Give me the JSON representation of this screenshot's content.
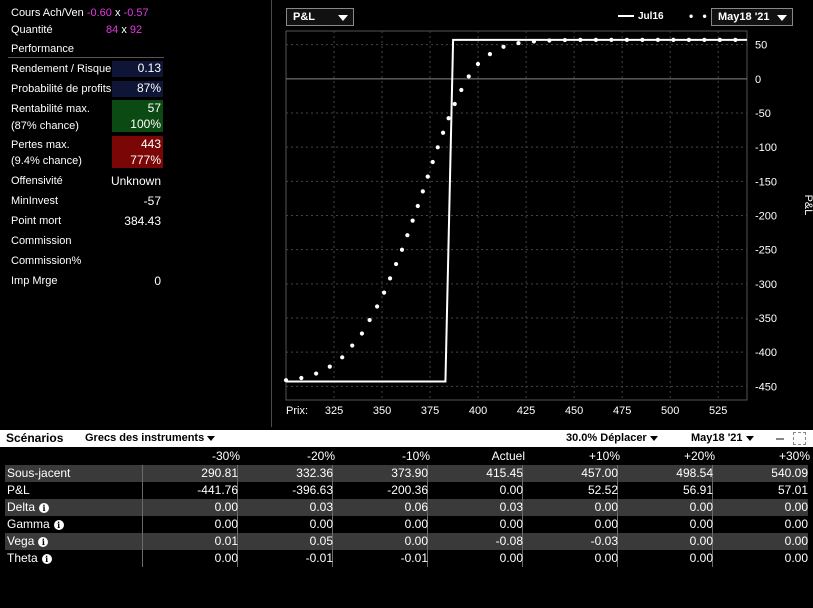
{
  "left": {
    "bidask_label": "Cours Ach/Ven",
    "bid": "-0.60",
    "x1": "x",
    "ask": "-0.57",
    "qty_label": "Quantité",
    "qty_bid": "84",
    "x2": "x",
    "qty_ask": "92",
    "performance": "Performance",
    "rows": {
      "rr_label": "Rendement / Risque",
      "rr_val": "0.13",
      "pp_label": "Probabilité de profits",
      "pp_val": "87%",
      "rm_label": "Rentabilité max.",
      "rm_val": "57",
      "rm_sub_label": "(87% chance)",
      "rm_sub_val": "100%",
      "pm_label": "Pertes max.",
      "pm_val": "443",
      "pm_sub_label": "(9.4% chance)",
      "pm_sub_val": "777%",
      "off_label": "Offensivité",
      "off_val": "Unknown",
      "mi_label": "MinInvest",
      "mi_val": "-57",
      "pt_label": "Point mort",
      "pt_val": "384.43",
      "com_label": "Commission",
      "comp_label": "Commission%",
      "imp_label": "Imp Mrge",
      "imp_val": "0"
    }
  },
  "chart": {
    "selector": "P&L",
    "legend1": "Jul16",
    "legend2_selector": "May18 '21",
    "x_axis_prefix": "Prix:",
    "y_axis_title": "P&L"
  },
  "chart_data": {
    "type": "line",
    "xlabel": "Prix:",
    "ylabel": "P&L",
    "xlim": [
      300,
      540
    ],
    "ylim": [
      -470,
      70
    ],
    "x_ticks": [
      325,
      350,
      375,
      400,
      425,
      450,
      475,
      500,
      525
    ],
    "y_ticks": [
      50,
      0,
      -50,
      -100,
      -150,
      -200,
      -250,
      -300,
      -350,
      -400,
      -450
    ],
    "series": [
      {
        "name": "Jul16",
        "style": "solid",
        "color": "#ffffff",
        "x": [
          300,
          383,
          383,
          387,
          540
        ],
        "y": [
          -443,
          -443,
          -443,
          57,
          57
        ]
      },
      {
        "name": "May18 '21",
        "style": "dotted",
        "color": "#ffffff",
        "x": [
          300,
          310,
          320,
          330,
          340,
          350,
          360,
          365,
          370,
          375,
          380,
          385,
          390,
          395,
          400,
          405,
          410,
          415,
          420,
          430,
          440,
          450,
          460,
          470,
          480,
          490,
          500,
          510,
          520,
          530,
          540
        ],
        "y": [
          -441,
          -437,
          -427,
          -406,
          -371,
          -320,
          -253,
          -215,
          -175,
          -133,
          -92,
          -55,
          -23,
          3,
          22,
          34,
          43,
          49,
          52,
          55,
          56.5,
          57,
          57,
          57,
          57,
          57,
          57,
          57,
          57,
          57,
          57
        ]
      }
    ]
  },
  "scenarios": {
    "title": "Scénarios",
    "greeks_dropdown": "Grecs des instruments",
    "shift_dropdown": "30.0% Déplacer",
    "date_dropdown": "May18 '21",
    "columns": [
      "-30%",
      "-20%",
      "-10%",
      "Actuel",
      "+10%",
      "+20%",
      "+30%"
    ],
    "rows": [
      {
        "label": "Sous-jacent",
        "info": "",
        "values": [
          "290.81",
          "332.36",
          "373.90",
          "415.45",
          "457.00",
          "498.54",
          "540.09"
        ]
      },
      {
        "label": "P&L",
        "info": "",
        "values": [
          "-441.76",
          "-396.63",
          "-200.36",
          "0.00",
          "52.52",
          "56.91",
          "57.01"
        ]
      },
      {
        "label": "Delta",
        "info": "i",
        "values": [
          "0.00",
          "0.03",
          "0.06",
          "0.03",
          "0.00",
          "0.00",
          "0.00"
        ]
      },
      {
        "label": "Gamma",
        "info": "i",
        "values": [
          "0.00",
          "0.00",
          "0.00",
          "0.00",
          "0.00",
          "0.00",
          "0.00"
        ]
      },
      {
        "label": "Vega",
        "info": "i",
        "values": [
          "0.01",
          "0.05",
          "0.00",
          "-0.08",
          "-0.03",
          "0.00",
          "0.00"
        ]
      },
      {
        "label": "Theta",
        "info": "i",
        "values": [
          "0.00",
          "-0.01",
          "-0.01",
          "0.00",
          "0.00",
          "0.00",
          "0.00"
        ]
      }
    ]
  },
  "colors": {
    "magenta": "#e03ae0",
    "navy_box": "#0e1536",
    "green_box": "#0b4a12",
    "red_box": "#7a0606",
    "row_gray": "#3a3a3a"
  }
}
